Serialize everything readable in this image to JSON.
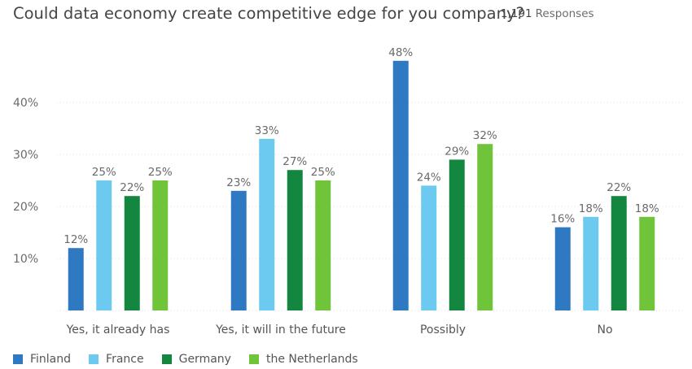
{
  "title": "Could data economy create competitive edge for you company?",
  "responses": {
    "count": "1,191",
    "label": "Responses"
  },
  "chart_data": {
    "type": "bar",
    "title": "Could data economy create competitive edge for you company?",
    "categories": [
      "Yes, it already has",
      "Yes, it will in the future",
      "Possibly",
      "No"
    ],
    "series": [
      {
        "name": "Finland",
        "color": "#2f78c2",
        "values": [
          12,
          23,
          48,
          16
        ]
      },
      {
        "name": "France",
        "color": "#6cc9ef",
        "values": [
          25,
          33,
          24,
          18
        ]
      },
      {
        "name": "Germany",
        "color": "#13873f",
        "values": [
          22,
          27,
          29,
          22
        ]
      },
      {
        "name": "the Netherlands",
        "color": "#6fc43a",
        "values": [
          25,
          25,
          32,
          18
        ]
      }
    ],
    "value_suffix": "%",
    "y_ticks": [
      "10%",
      "20%",
      "30%",
      "40%"
    ],
    "ylim": [
      0,
      50
    ],
    "grid": "dotted horizontal",
    "legend": "bottom-left"
  }
}
